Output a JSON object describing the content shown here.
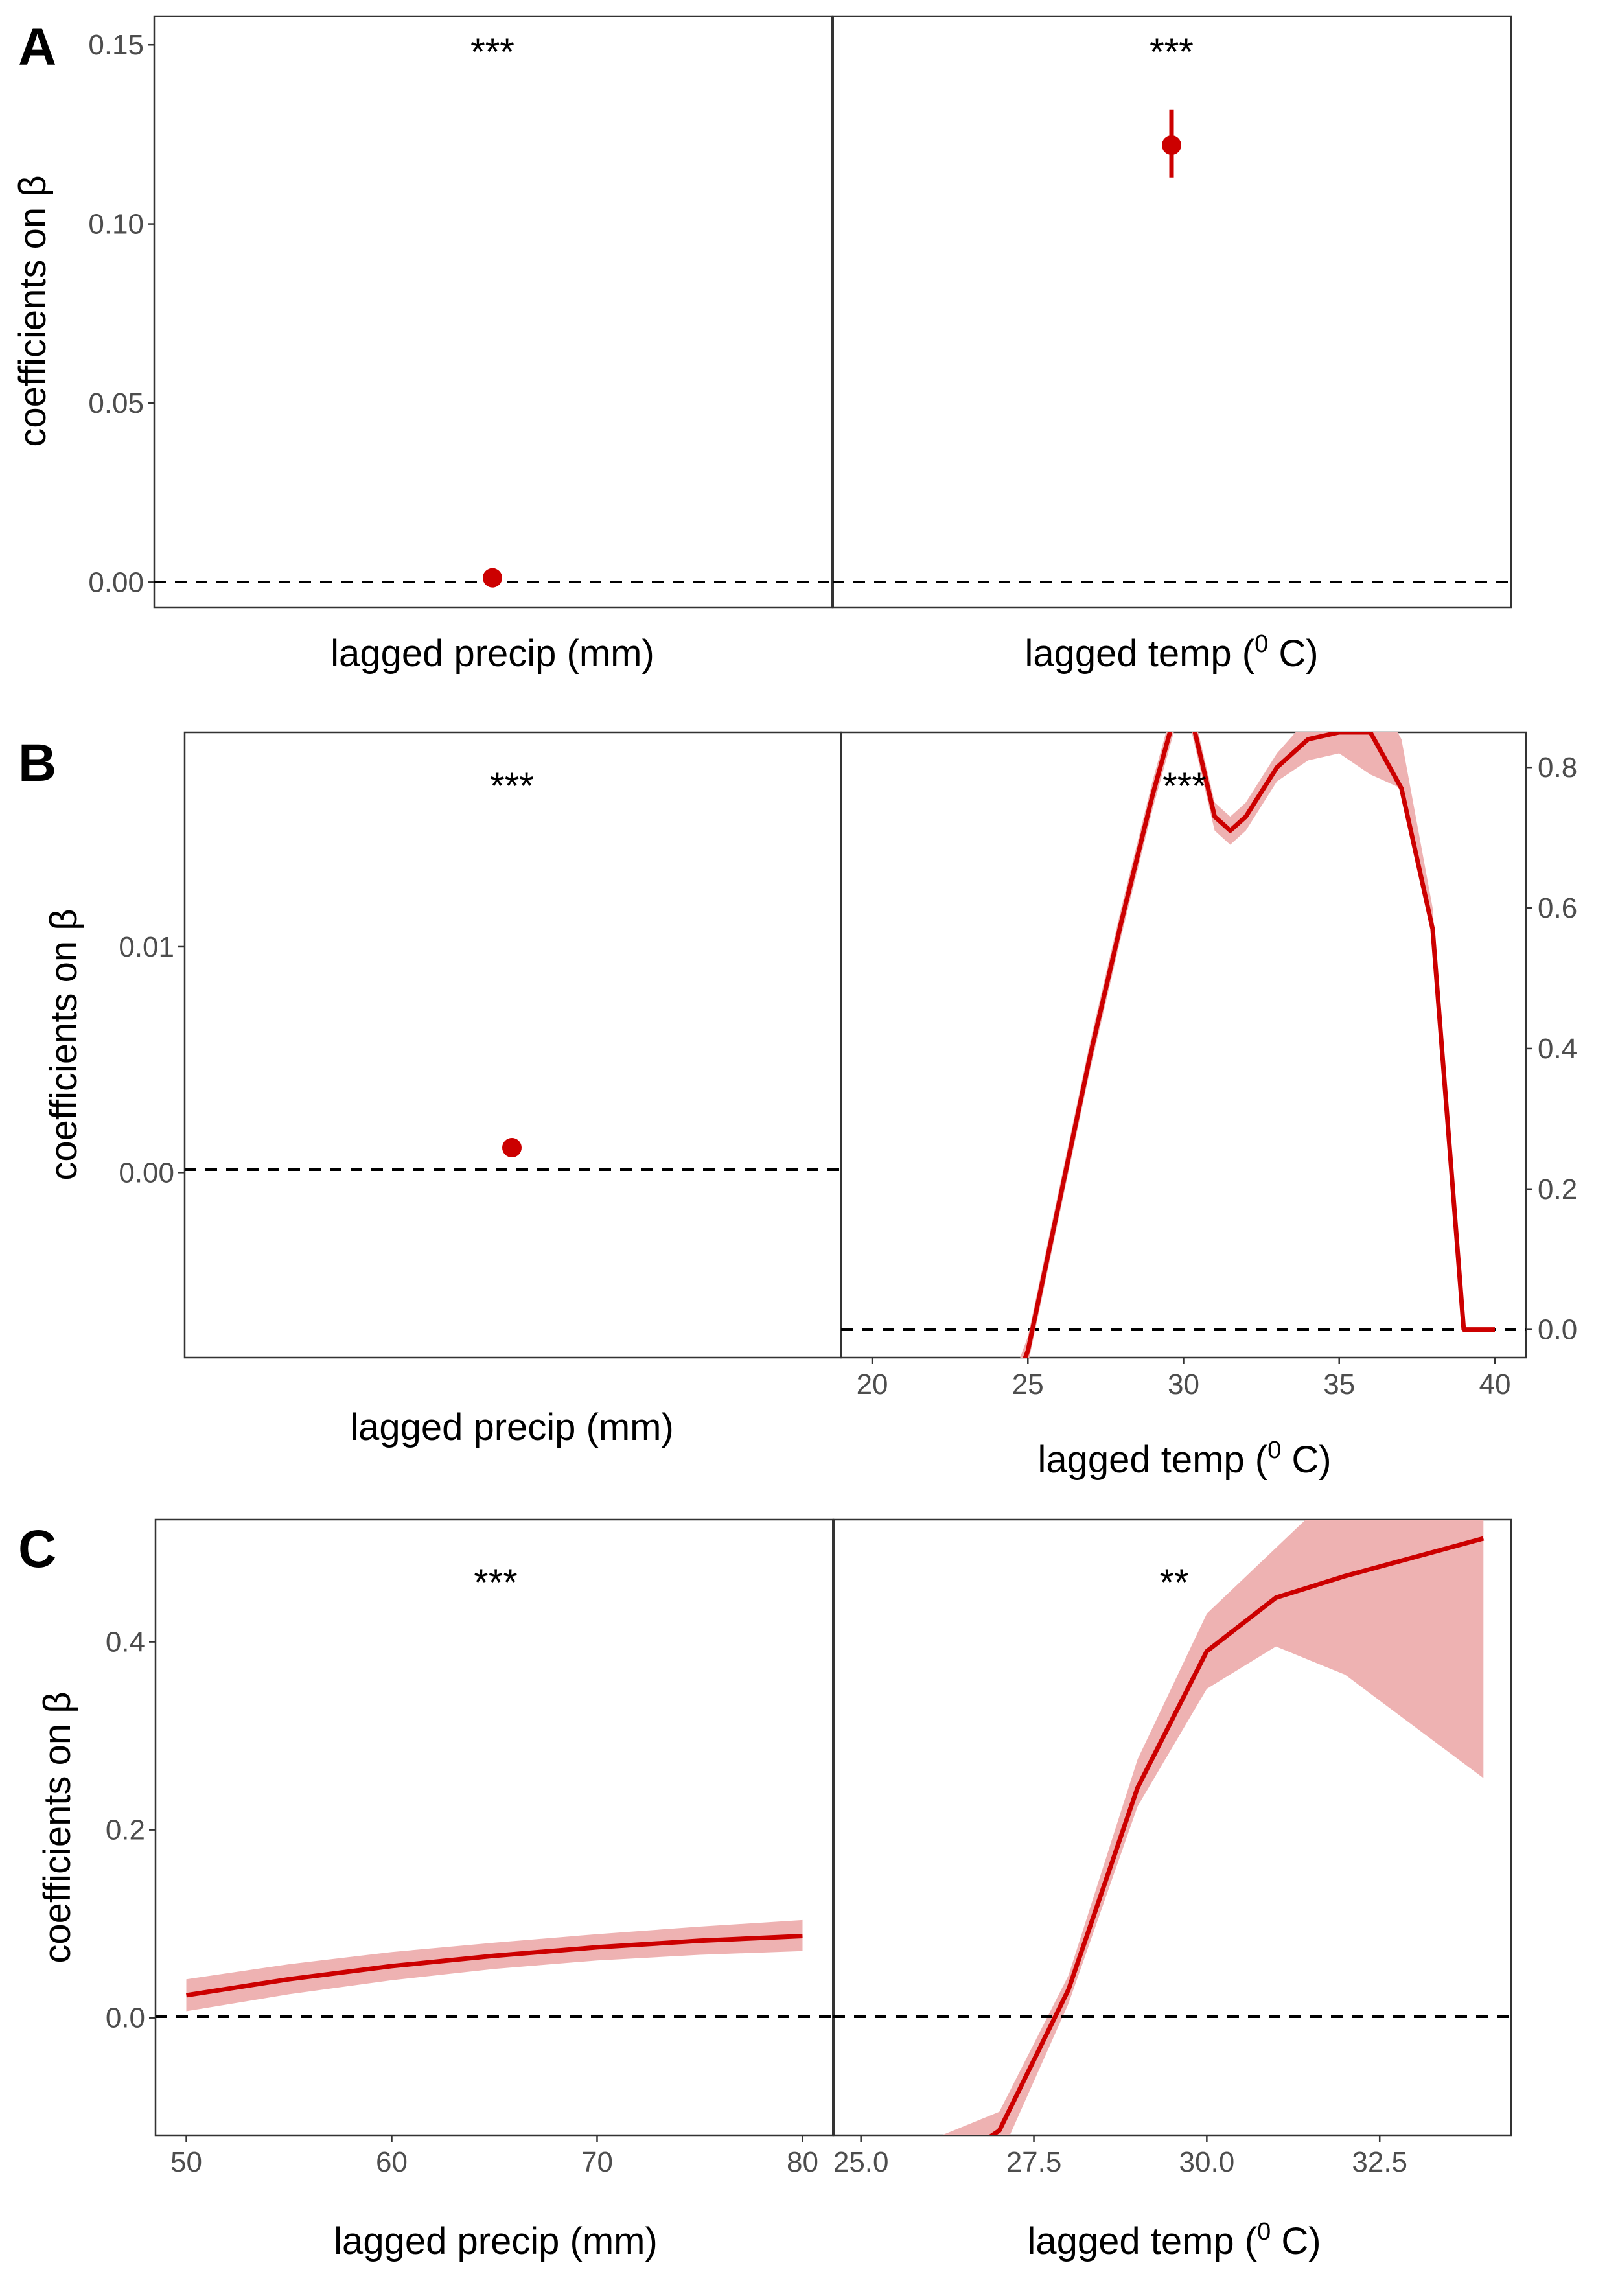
{
  "colors": {
    "series": "#cc0000",
    "ribbon": "#eeb2b2",
    "zero_line": "#000000",
    "frame": "#333333",
    "tick_text": "#4d4d4d"
  },
  "chart_data": [
    {
      "panel": "A",
      "ylabel": "coefficients on β",
      "ylim": [
        -0.007,
        0.158
      ],
      "yticks": [
        "0.00",
        "0.05",
        "0.10",
        "0.15"
      ],
      "grid": false,
      "facets": [
        {
          "id": "A-precip",
          "type": "scatter",
          "xlabel": "lagged precip (mm)",
          "significance": "***",
          "points": [
            {
              "y": 0.0012,
              "lo": 0.0012,
              "hi": 0.0012
            }
          ]
        },
        {
          "id": "A-temp",
          "type": "scatter",
          "xlabel": "lagged temp (",
          "xlabel_sup": "0",
          "xlabel_suffix": " C)",
          "significance": "***",
          "points": [
            {
              "y": 0.122,
              "lo": 0.113,
              "hi": 0.132
            }
          ]
        }
      ]
    },
    {
      "panel": "B",
      "facets": [
        {
          "id": "B-precip",
          "type": "scatter",
          "xlabel": "lagged precip (mm)",
          "ylabel": "coefficients on β",
          "ylim": [
            -0.0082,
            0.0195
          ],
          "yticks": [
            "0.00",
            "0.01"
          ],
          "significance": "***",
          "points": [
            {
              "y": 0.0011,
              "lo": 0.0011,
              "hi": 0.0011
            }
          ]
        },
        {
          "id": "B-temp",
          "type": "line",
          "xlabel": "lagged temp (",
          "xlabel_sup": "0",
          "xlabel_suffix": " C)",
          "xlim": [
            19,
            41
          ],
          "xticks": [
            "20",
            "25",
            "30",
            "35",
            "40"
          ],
          "ylim": [
            -0.04,
            0.85
          ],
          "yticks": [
            "0.0",
            "0.2",
            "0.4",
            "0.6",
            "0.8"
          ],
          "significance": "***",
          "x": [
            24.5,
            25,
            26,
            27,
            28,
            29,
            30,
            31,
            31.5,
            32,
            33,
            34,
            35,
            36,
            37,
            38,
            39,
            40
          ],
          "y": [
            -0.09,
            -0.03,
            0.18,
            0.39,
            0.58,
            0.76,
            0.92,
            0.73,
            0.71,
            0.73,
            0.8,
            0.84,
            0.85,
            0.85,
            0.77,
            0.57,
            0.0,
            0.0
          ],
          "lower": [
            -0.11,
            -0.05,
            0.16,
            0.37,
            0.56,
            0.74,
            0.9,
            0.71,
            0.69,
            0.71,
            0.78,
            0.81,
            0.82,
            0.79,
            0.77,
            0.57,
            0.0,
            0.0
          ],
          "upper": [
            -0.07,
            -0.01,
            0.2,
            0.41,
            0.6,
            0.78,
            0.94,
            0.75,
            0.73,
            0.75,
            0.82,
            0.87,
            0.88,
            0.92,
            0.84,
            0.6,
            0.0,
            0.0
          ]
        }
      ]
    },
    {
      "panel": "C",
      "ylabel": "coefficients on β",
      "ylim": [
        -0.125,
        0.53
      ],
      "yticks": [
        "0.0",
        "0.2",
        "0.4"
      ],
      "grid": false,
      "facets": [
        {
          "id": "C-precip",
          "type": "line",
          "xlabel": "lagged precip (mm)",
          "xlim": [
            48.5,
            81.5
          ],
          "xticks": [
            "50",
            "60",
            "70",
            "80"
          ],
          "significance": "***",
          "x": [
            50,
            55,
            60,
            65,
            70,
            75,
            80
          ],
          "y": [
            0.024,
            0.041,
            0.055,
            0.066,
            0.075,
            0.082,
            0.087
          ],
          "lower": [
            0.007,
            0.025,
            0.04,
            0.052,
            0.061,
            0.067,
            0.071
          ],
          "upper": [
            0.041,
            0.057,
            0.07,
            0.08,
            0.089,
            0.097,
            0.104
          ]
        },
        {
          "id": "C-temp",
          "type": "line",
          "xlabel": "lagged temp (",
          "xlabel_sup": "0",
          "xlabel_suffix": " C)",
          "xlim": [
            24.6,
            34.4
          ],
          "xticks": [
            "25.0",
            "27.5",
            "30.0",
            "32.5"
          ],
          "significance": "**",
          "x": [
            25,
            26,
            27,
            28,
            29,
            30,
            31,
            32,
            34
          ],
          "y": [
            -0.24,
            -0.17,
            -0.12,
            0.03,
            0.245,
            0.39,
            0.447,
            0.47,
            0.51
          ],
          "lower": [
            -0.28,
            -0.21,
            -0.15,
            0.015,
            0.225,
            0.35,
            0.395,
            0.365,
            0.255
          ],
          "upper": [
            -0.2,
            -0.13,
            -0.1,
            0.045,
            0.275,
            0.43,
            0.5,
            0.57,
            0.76
          ]
        }
      ]
    }
  ]
}
